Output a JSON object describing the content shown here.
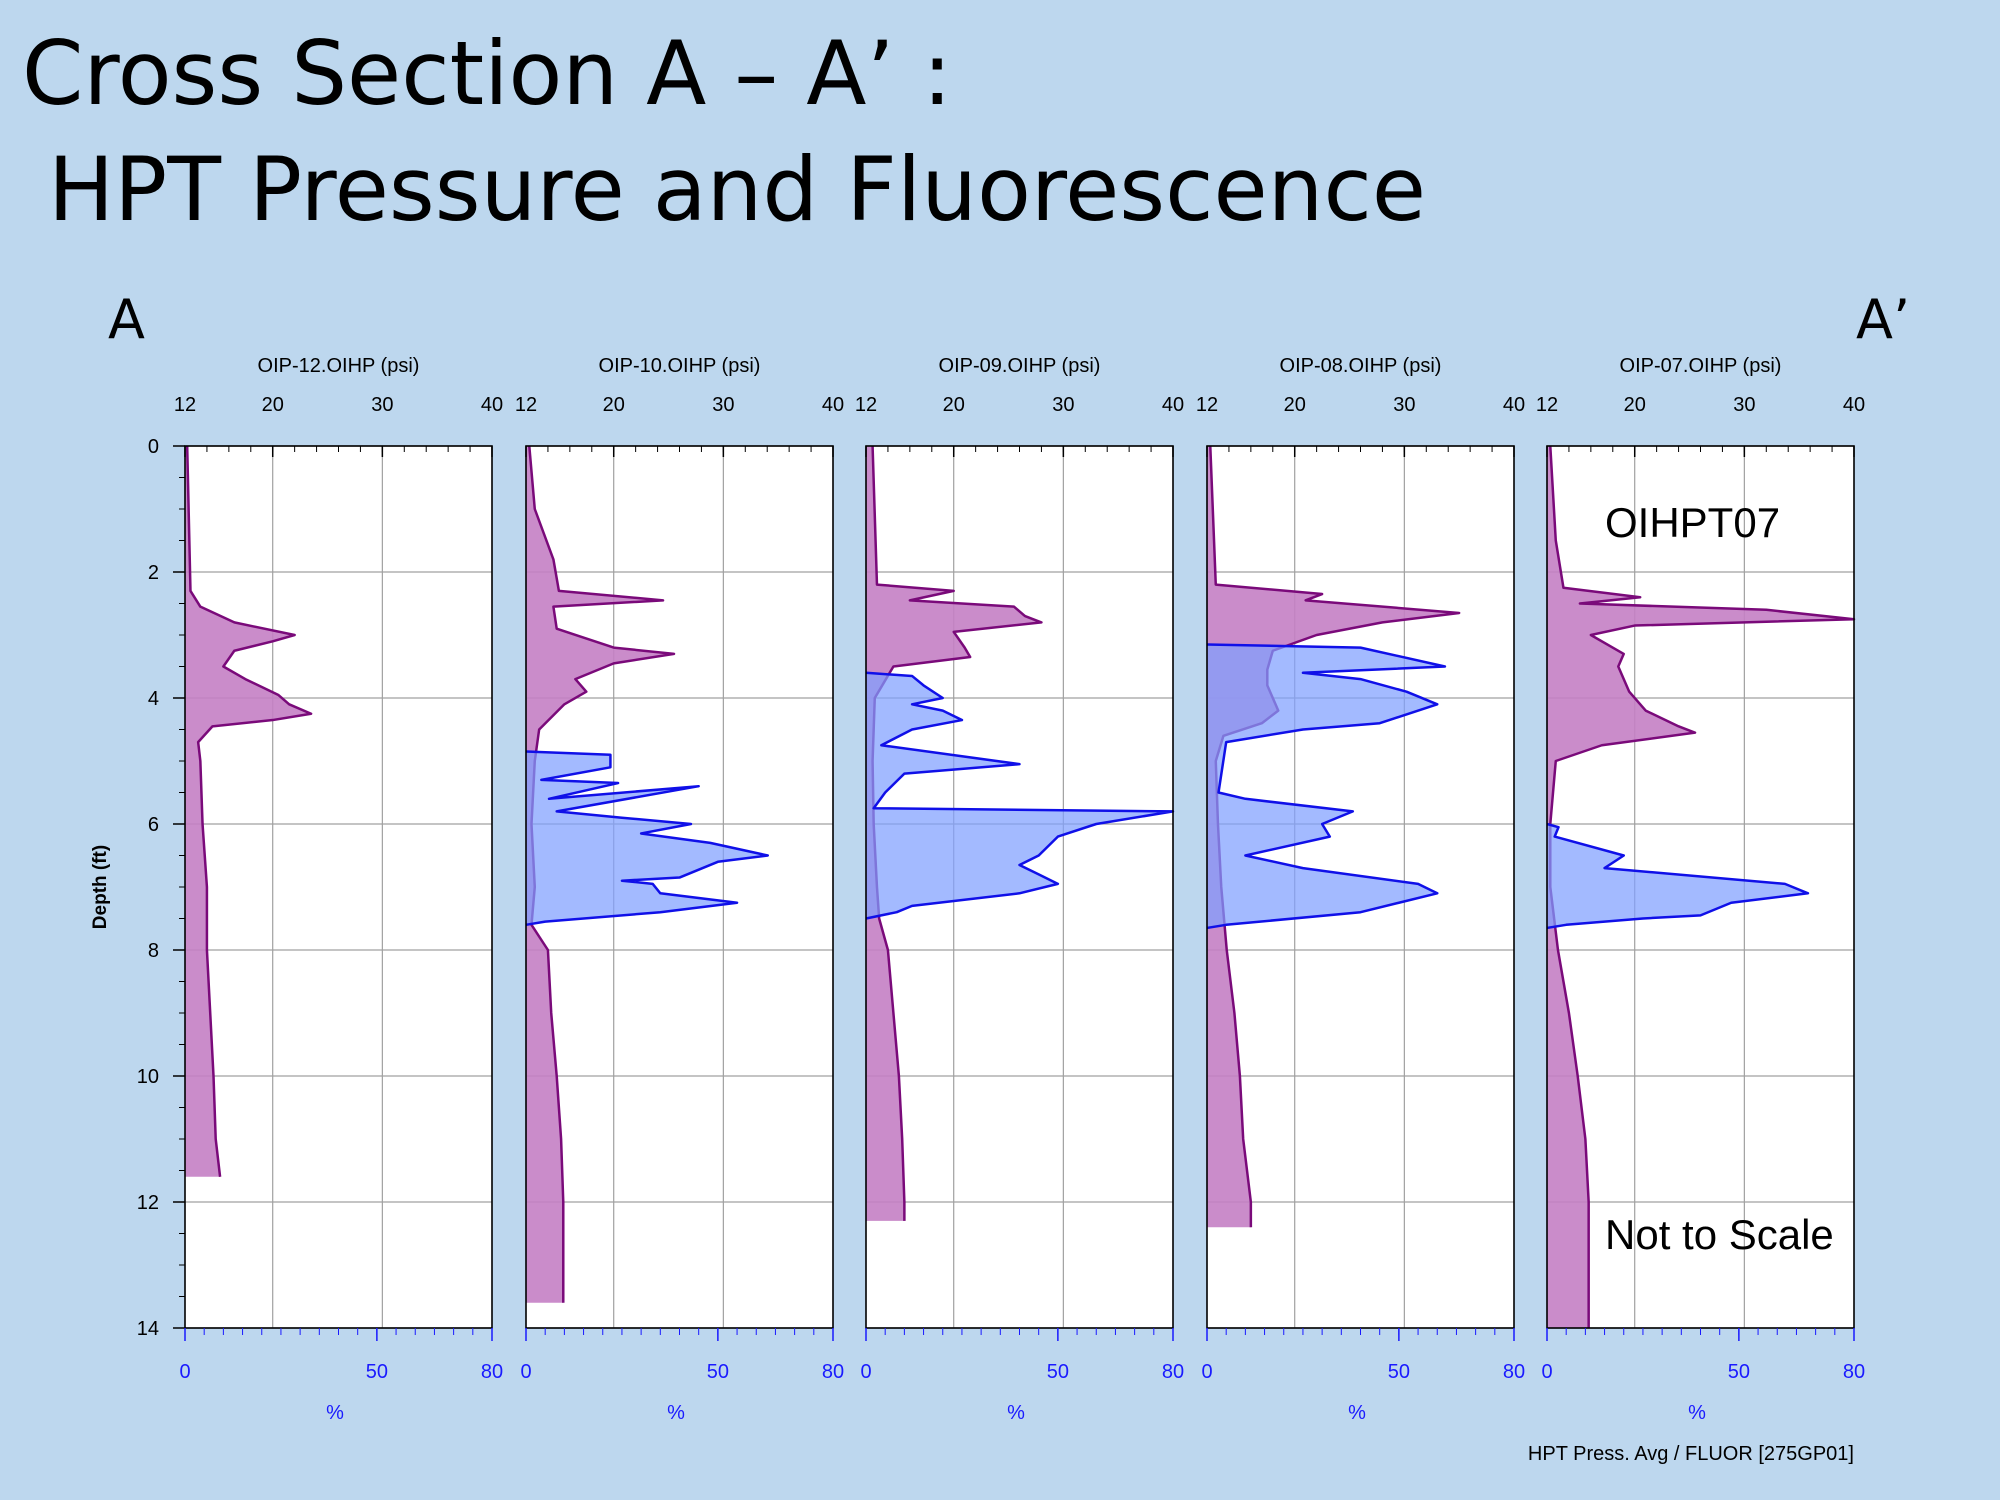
{
  "title_line1": "Cross Section A – A’ :",
  "title_line2": "HPT Pressure and Fluorescence",
  "left_end_label": "A",
  "right_end_label": "A’",
  "footer": "HPT Press. Avg / FLUOR [275GP01]",
  "colors": {
    "background": "#bdd7ee",
    "pressure_line": "#7a0a7a",
    "pressure_fill": "#c47fc4",
    "fluor_line": "#1010e8",
    "fluor_fill": "#7f9fff",
    "grid": "#a0a0a0",
    "bottom_axis": "#1a1aff"
  },
  "chart_data": {
    "type": "area",
    "shared": {
      "ylabel": "Depth (ft)",
      "ylim": [
        0,
        14
      ],
      "yticks": [
        0,
        2,
        4,
        6,
        8,
        10,
        12,
        14
      ],
      "top_axis_range": [
        12,
        40
      ],
      "top_axis_ticks": [
        12,
        20,
        30,
        40
      ],
      "bottom_axis_range": [
        0,
        80
      ],
      "bottom_axis_ticks": [
        0,
        50,
        80
      ],
      "bottom_axis_label": "%",
      "grid": true
    },
    "panels": [
      {
        "name": "OIP-12.OIHP (psi)",
        "pressure": [
          [
            0,
            12.2
          ],
          [
            2.3,
            12.5
          ],
          [
            2.55,
            13.4
          ],
          [
            2.8,
            16.5
          ],
          [
            3.0,
            22.0
          ],
          [
            3.1,
            20.0
          ],
          [
            3.25,
            16.5
          ],
          [
            3.5,
            15.5
          ],
          [
            3.7,
            17.5
          ],
          [
            3.95,
            20.5
          ],
          [
            4.1,
            21.5
          ],
          [
            4.25,
            23.5
          ],
          [
            4.35,
            20.0
          ],
          [
            4.45,
            14.5
          ],
          [
            4.7,
            13.2
          ],
          [
            5.0,
            13.4
          ],
          [
            6.0,
            13.6
          ],
          [
            7.0,
            14.0
          ],
          [
            8.0,
            14.0
          ],
          [
            9.0,
            14.3
          ],
          [
            10.0,
            14.6
          ],
          [
            11.0,
            14.8
          ],
          [
            11.6,
            15.2
          ]
        ],
        "fluor": []
      },
      {
        "name": "OIP-10.OIHP (psi)",
        "pressure": [
          [
            0,
            12.3
          ],
          [
            1.0,
            12.8
          ],
          [
            1.8,
            14.5
          ],
          [
            2.3,
            15.0
          ],
          [
            2.45,
            24.5
          ],
          [
            2.55,
            14.5
          ],
          [
            2.9,
            14.8
          ],
          [
            3.2,
            20.0
          ],
          [
            3.3,
            25.5
          ],
          [
            3.45,
            20.0
          ],
          [
            3.7,
            16.5
          ],
          [
            3.9,
            17.5
          ],
          [
            4.1,
            15.5
          ],
          [
            4.5,
            13.2
          ],
          [
            5.0,
            12.8
          ],
          [
            6.0,
            12.5
          ],
          [
            7.0,
            12.8
          ],
          [
            7.6,
            12.5
          ],
          [
            8.0,
            14.0
          ],
          [
            9.0,
            14.3
          ],
          [
            10.0,
            14.8
          ],
          [
            11.0,
            15.2
          ],
          [
            12.0,
            15.4
          ],
          [
            13.0,
            15.4
          ],
          [
            13.6,
            15.4
          ]
        ],
        "fluor": [
          [
            4.85,
            0
          ],
          [
            4.9,
            22
          ],
          [
            5.1,
            22
          ],
          [
            5.3,
            4
          ],
          [
            5.35,
            24
          ],
          [
            5.6,
            6
          ],
          [
            5.4,
            45
          ],
          [
            5.8,
            8
          ],
          [
            5.9,
            25
          ],
          [
            6.0,
            43
          ],
          [
            6.15,
            30
          ],
          [
            6.3,
            48
          ],
          [
            6.5,
            63
          ],
          [
            6.6,
            50
          ],
          [
            6.85,
            40
          ],
          [
            6.9,
            25
          ],
          [
            6.95,
            33
          ],
          [
            7.1,
            35
          ],
          [
            7.25,
            55
          ],
          [
            7.4,
            35
          ],
          [
            7.55,
            5
          ],
          [
            7.6,
            0
          ]
        ]
      },
      {
        "name": "OIP-09.OIHP (psi)",
        "pressure": [
          [
            0,
            12.6
          ],
          [
            2.2,
            13.0
          ],
          [
            2.3,
            20.0
          ],
          [
            2.45,
            16.0
          ],
          [
            2.55,
            25.5
          ],
          [
            2.7,
            26.5
          ],
          [
            2.8,
            28.0
          ],
          [
            2.95,
            20.0
          ],
          [
            3.2,
            21.0
          ],
          [
            3.35,
            21.5
          ],
          [
            3.5,
            14.5
          ],
          [
            4.0,
            12.8
          ],
          [
            5.0,
            12.6
          ],
          [
            6.0,
            12.7
          ],
          [
            7.0,
            13.0
          ],
          [
            7.5,
            13.2
          ],
          [
            8.0,
            14.0
          ],
          [
            9.0,
            14.5
          ],
          [
            10.0,
            15.0
          ],
          [
            11.0,
            15.3
          ],
          [
            12.0,
            15.5
          ],
          [
            12.3,
            15.5
          ]
        ],
        "fluor": [
          [
            3.6,
            0
          ],
          [
            3.65,
            12
          ],
          [
            3.8,
            15
          ],
          [
            4.0,
            20
          ],
          [
            4.1,
            12
          ],
          [
            4.2,
            20
          ],
          [
            4.35,
            25
          ],
          [
            4.5,
            12
          ],
          [
            4.75,
            4
          ],
          [
            5.05,
            40
          ],
          [
            5.2,
            10
          ],
          [
            5.5,
            5
          ],
          [
            5.75,
            2
          ],
          [
            5.8,
            80
          ],
          [
            6.0,
            60
          ],
          [
            6.2,
            50
          ],
          [
            6.5,
            45
          ],
          [
            6.65,
            40
          ],
          [
            6.8,
            45
          ],
          [
            6.95,
            50
          ],
          [
            7.1,
            40
          ],
          [
            7.3,
            12
          ],
          [
            7.4,
            8
          ],
          [
            7.5,
            0
          ]
        ]
      },
      {
        "name": "OIP-08.OIHP (psi)",
        "pressure": [
          [
            0,
            12.3
          ],
          [
            2.2,
            12.8
          ],
          [
            2.35,
            22.5
          ],
          [
            2.45,
            21.0
          ],
          [
            2.65,
            35.0
          ],
          [
            2.8,
            28.0
          ],
          [
            3.0,
            22.0
          ],
          [
            3.25,
            18.0
          ],
          [
            3.55,
            17.5
          ],
          [
            3.8,
            17.5
          ],
          [
            4.0,
            18.0
          ],
          [
            4.2,
            18.5
          ],
          [
            4.4,
            17.0
          ],
          [
            4.6,
            13.5
          ],
          [
            5.0,
            12.8
          ],
          [
            6.0,
            13.0
          ],
          [
            7.0,
            13.3
          ],
          [
            8.0,
            13.8
          ],
          [
            9.0,
            14.5
          ],
          [
            10.0,
            15.0
          ],
          [
            11.0,
            15.3
          ],
          [
            12.0,
            16.0
          ],
          [
            12.4,
            16.0
          ]
        ],
        "fluor": [
          [
            3.15,
            0
          ],
          [
            3.2,
            40
          ],
          [
            3.5,
            62
          ],
          [
            3.6,
            25
          ],
          [
            3.7,
            40
          ],
          [
            3.9,
            52
          ],
          [
            4.1,
            60
          ],
          [
            4.4,
            45
          ],
          [
            4.5,
            25
          ],
          [
            4.7,
            5
          ],
          [
            5.5,
            3
          ],
          [
            5.6,
            10
          ],
          [
            5.8,
            38
          ],
          [
            6.0,
            30
          ],
          [
            6.2,
            32
          ],
          [
            6.5,
            10
          ],
          [
            6.7,
            25
          ],
          [
            6.95,
            55
          ],
          [
            7.1,
            60
          ],
          [
            7.25,
            50
          ],
          [
            7.4,
            40
          ],
          [
            7.6,
            5
          ],
          [
            7.65,
            0
          ]
        ]
      },
      {
        "name": "OIP-07.OIHP (psi)",
        "pressure": [
          [
            0,
            12.3
          ],
          [
            1.5,
            12.8
          ],
          [
            2.25,
            13.5
          ],
          [
            2.4,
            20.5
          ],
          [
            2.5,
            15.0
          ],
          [
            2.6,
            32.0
          ],
          [
            2.75,
            40.0
          ],
          [
            2.85,
            20.0
          ],
          [
            3.0,
            16.0
          ],
          [
            3.3,
            19.0
          ],
          [
            3.5,
            18.5
          ],
          [
            3.9,
            19.5
          ],
          [
            4.2,
            21.0
          ],
          [
            4.45,
            24.0
          ],
          [
            4.55,
            25.5
          ],
          [
            4.75,
            17.0
          ],
          [
            5.0,
            12.8
          ],
          [
            6.0,
            12.3
          ],
          [
            7.0,
            12.3
          ],
          [
            8.0,
            13.0
          ],
          [
            8.5,
            13.5
          ],
          [
            9.0,
            14.0
          ],
          [
            10.0,
            14.8
          ],
          [
            11.0,
            15.5
          ],
          [
            12.0,
            15.8
          ],
          [
            13.0,
            15.8
          ],
          [
            14.0,
            15.8
          ]
        ],
        "fluor": [
          [
            6.0,
            0
          ],
          [
            6.05,
            3
          ],
          [
            6.2,
            2
          ],
          [
            6.5,
            20
          ],
          [
            6.7,
            15
          ],
          [
            6.95,
            62
          ],
          [
            7.1,
            68
          ],
          [
            7.25,
            48
          ],
          [
            7.45,
            40
          ],
          [
            7.5,
            25
          ],
          [
            7.6,
            5
          ],
          [
            7.65,
            0
          ]
        ],
        "annotations": [
          "OIHPT07",
          "Not to Scale"
        ]
      }
    ]
  }
}
